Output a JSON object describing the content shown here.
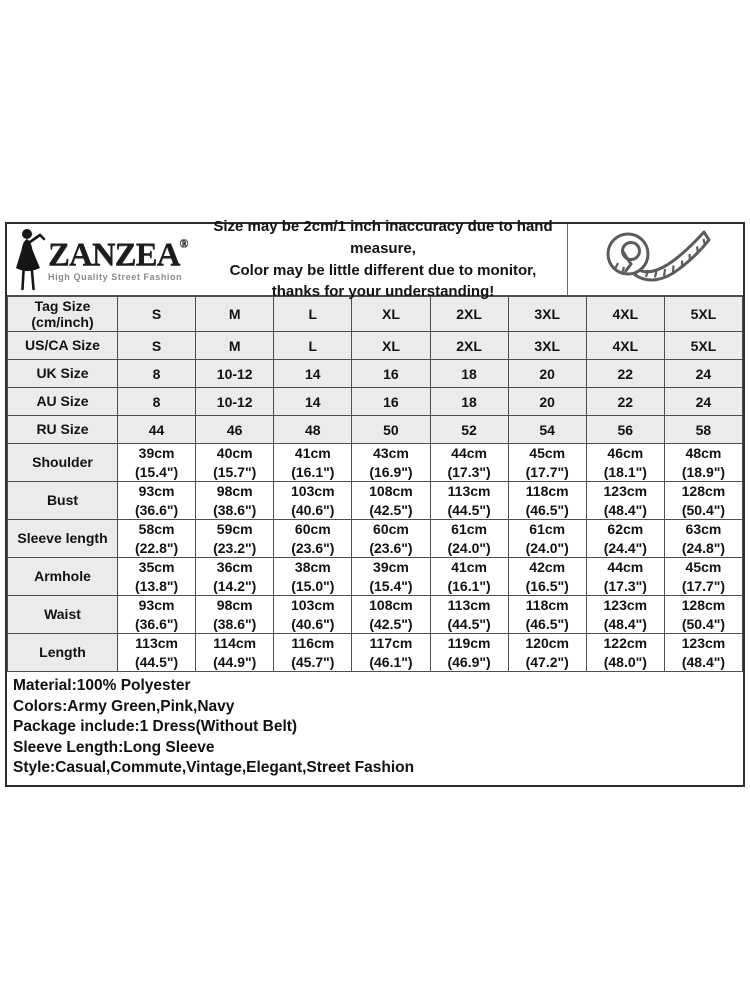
{
  "brand": {
    "wordmark": "ZANZEA",
    "registered": "®",
    "tagline": "High Quality Street Fashion"
  },
  "icons": {
    "logo_figure": "woman-silhouette-icon",
    "tape": "tape-measure-icon"
  },
  "notice": {
    "line1": "Size may be 2cm/1 inch inaccuracy due to hand measure,",
    "line2": "Color may be little different due to monitor,",
    "line3": "thanks for your understanding!"
  },
  "size_table": {
    "columns": [
      "S",
      "M",
      "L",
      "XL",
      "2XL",
      "3XL",
      "4XL",
      "5XL"
    ],
    "size_rows": [
      {
        "label": "Tag Size",
        "sublabel": "(cm/inch)",
        "values": [
          "S",
          "M",
          "L",
          "XL",
          "2XL",
          "3XL",
          "4XL",
          "5XL"
        ]
      },
      {
        "label": "US/CA Size",
        "values": [
          "S",
          "M",
          "L",
          "XL",
          "2XL",
          "3XL",
          "4XL",
          "5XL"
        ]
      },
      {
        "label": "UK Size",
        "values": [
          "8",
          "10-12",
          "14",
          "16",
          "18",
          "20",
          "22",
          "24"
        ]
      },
      {
        "label": "AU Size",
        "values": [
          "8",
          "10-12",
          "14",
          "16",
          "18",
          "20",
          "22",
          "24"
        ]
      },
      {
        "label": "RU Size",
        "values": [
          "44",
          "46",
          "48",
          "50",
          "52",
          "54",
          "56",
          "58"
        ]
      }
    ],
    "measure_rows": [
      {
        "label": "Shoulder",
        "cm": [
          "39cm",
          "40cm",
          "41cm",
          "43cm",
          "44cm",
          "45cm",
          "46cm",
          "48cm"
        ],
        "inch": [
          "(15.4\")",
          "(15.7\")",
          "(16.1\")",
          "(16.9\")",
          "(17.3\")",
          "(17.7\")",
          "(18.1\")",
          "(18.9\")"
        ]
      },
      {
        "label": "Bust",
        "cm": [
          "93cm",
          "98cm",
          "103cm",
          "108cm",
          "113cm",
          "118cm",
          "123cm",
          "128cm"
        ],
        "inch": [
          "(36.6\")",
          "(38.6\")",
          "(40.6\")",
          "(42.5\")",
          "(44.5\")",
          "(46.5\")",
          "(48.4\")",
          "(50.4\")"
        ]
      },
      {
        "label": "Sleeve length",
        "cm": [
          "58cm",
          "59cm",
          "60cm",
          "60cm",
          "61cm",
          "61cm",
          "62cm",
          "63cm"
        ],
        "inch": [
          "(22.8\")",
          "(23.2\")",
          "(23.6\")",
          "(23.6\")",
          "(24.0\")",
          "(24.0\")",
          "(24.4\")",
          "(24.8\")"
        ]
      },
      {
        "label": "Armhole",
        "cm": [
          "35cm",
          "36cm",
          "38cm",
          "39cm",
          "41cm",
          "42cm",
          "44cm",
          "45cm"
        ],
        "inch": [
          "(13.8\")",
          "(14.2\")",
          "(15.0\")",
          "(15.4\")",
          "(16.1\")",
          "(16.5\")",
          "(17.3\")",
          "(17.7\")"
        ]
      },
      {
        "label": "Waist",
        "cm": [
          "93cm",
          "98cm",
          "103cm",
          "108cm",
          "113cm",
          "118cm",
          "123cm",
          "128cm"
        ],
        "inch": [
          "(36.6\")",
          "(38.6\")",
          "(40.6\")",
          "(42.5\")",
          "(44.5\")",
          "(46.5\")",
          "(48.4\")",
          "(50.4\")"
        ]
      },
      {
        "label": "Length",
        "cm": [
          "113cm",
          "114cm",
          "116cm",
          "117cm",
          "119cm",
          "120cm",
          "122cm",
          "123cm"
        ],
        "inch": [
          "(44.5\")",
          "(44.9\")",
          "(45.7\")",
          "(46.1\")",
          "(46.9\")",
          "(47.2\")",
          "(48.0\")",
          "(48.4\")"
        ]
      }
    ]
  },
  "details": {
    "lines": [
      "Material:100% Polyester",
      "Colors:Army Green,Pink,Navy",
      "Package include:1 Dress(Without Belt)",
      "Sleeve Length:Long Sleeve",
      "Style:Casual,Commute,Vintage,Elegant,Street Fashion"
    ]
  },
  "colors": {
    "cell_gray": "#ebebeb",
    "grid_line": "#4f4f4f",
    "text": "#121212",
    "tagline_gray": "#8a8a8a"
  }
}
